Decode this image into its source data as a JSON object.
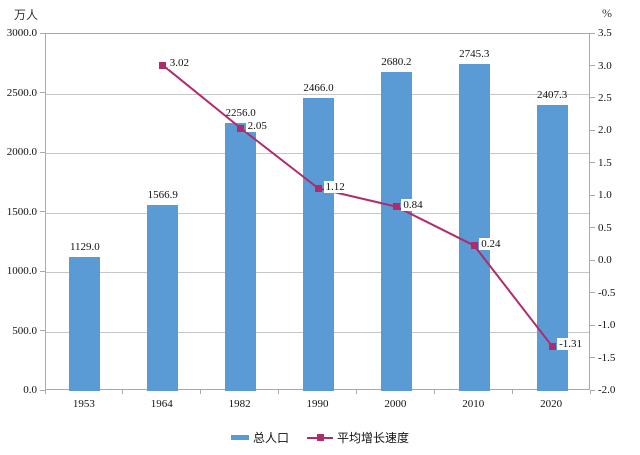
{
  "chart_data": {
    "type": "bar+line",
    "categories": [
      "1953",
      "1964",
      "1982",
      "1990",
      "2000",
      "2010",
      "2020"
    ],
    "series": [
      {
        "name": "总人口",
        "type": "bar",
        "axis": "left",
        "color": "#5b9bd5",
        "values": [
          1129.0,
          1566.9,
          2256.0,
          2466.0,
          2680.2,
          2745.3,
          2407.3
        ],
        "labels": [
          "1129.0",
          "1566.9",
          "2256.0",
          "2466.0",
          "2680.2",
          "2745.3",
          "2407.3"
        ]
      },
      {
        "name": "平均增长速度",
        "type": "line",
        "axis": "right",
        "color": "#b02b6b",
        "values": [
          null,
          3.02,
          2.05,
          1.12,
          0.84,
          0.24,
          -1.31
        ],
        "labels": [
          null,
          "3.02",
          "2.05",
          "1.12",
          "0.84",
          "0.24",
          "-1.31"
        ]
      }
    ],
    "left_axis": {
      "title": "万人",
      "min": 0,
      "max": 3000,
      "step": 500,
      "tick_labels": [
        "3000.0",
        "2500.0",
        "2000.0",
        "1500.0",
        "1000.0",
        "500.0",
        "0.0"
      ]
    },
    "right_axis": {
      "title": "%",
      "min": -2.0,
      "max": 3.5,
      "step": 0.5,
      "tick_labels": [
        "3.5",
        "3.0",
        "2.5",
        "2.0",
        "1.5",
        "1.0",
        "0.5",
        "0.0",
        "-0.5",
        "-1.0",
        "-1.5",
        "-2.0"
      ]
    },
    "grid": true,
    "legend_position": "bottom",
    "colors": {
      "grid": "#c6c6c6",
      "axis": "#a9a9a9",
      "background": "#ffffff"
    }
  }
}
